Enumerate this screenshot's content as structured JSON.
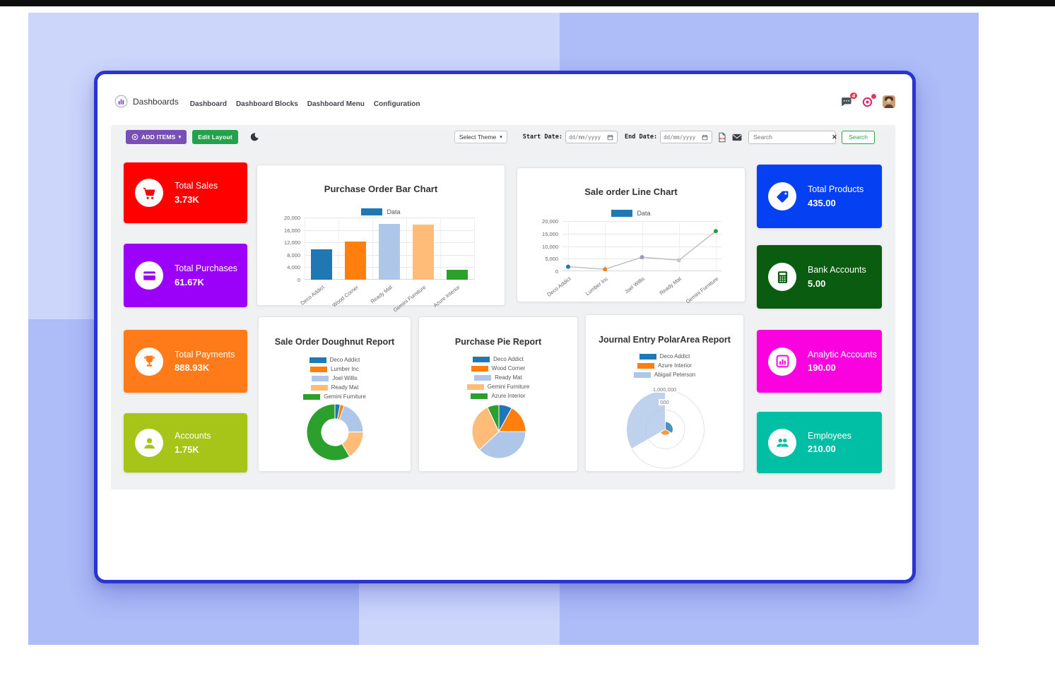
{
  "header": {
    "brand": "Dashboards",
    "nav": [
      "Dashboard",
      "Dashboard Blocks",
      "Dashboard Menu",
      "Configuration"
    ],
    "messages_badge": "4"
  },
  "toolbar": {
    "add_items_label": "ADD ITEMS",
    "edit_layout_label": "Edit Layout",
    "theme_select_value": "Select Theme",
    "start_date_label": "Start Date:",
    "end_date_label": "End Date:",
    "date_placeholder": "dd/mm/yyyy",
    "search_placeholder": "Search",
    "search_clear_glyph": "✕",
    "search_button_label": "Search"
  },
  "accents": {
    "add_items_button": "#7a4fb5",
    "edit_layout_button": "#23a24d",
    "search_button_border": "#28a745",
    "window_border": "#2a35d0",
    "badge": "#e23a53"
  },
  "kpis_left": [
    {
      "label": "Total Sales",
      "value": "3.73K",
      "color": "#fe0000",
      "icon": "cart-icon"
    },
    {
      "label": "Total Purchases",
      "value": "61.67K",
      "color": "#9b00f9",
      "icon": "credit-card-icon"
    },
    {
      "label": "Total Payments",
      "value": "888.93K",
      "color": "#ff7a18",
      "icon": "trophy-icon"
    },
    {
      "label": "Accounts",
      "value": "1.75K",
      "color": "#a6c518",
      "icon": "user-icon"
    }
  ],
  "kpis_right": [
    {
      "label": "Total Products",
      "value": "435.00",
      "color": "#0540f2",
      "icon": "tag-icon"
    },
    {
      "label": "Bank Accounts",
      "value": "5.00",
      "color": "#0a5c10",
      "icon": "calculator-icon"
    },
    {
      "label": "Analytic Accounts",
      "value": "190.00",
      "color": "#f902df",
      "icon": "bar-chart-icon"
    },
    {
      "label": "Employees",
      "value": "210.00",
      "color": "#00bfa5",
      "icon": "users-icon"
    }
  ],
  "chart_data": [
    {
      "type": "bar",
      "title": "Purchase Order Bar Chart",
      "legend": [
        "Data"
      ],
      "legend_color": "#1f77b4",
      "categories": [
        "Deco Addict",
        "Wood Corner",
        "Ready Mat",
        "Gemini Furniture",
        "Azure Interior"
      ],
      "values": [
        9800,
        12300,
        18000,
        17800,
        3200
      ],
      "colors": [
        "#1f77b4",
        "#ff7f0e",
        "#aec7e8",
        "#ffbb78",
        "#2ca02c"
      ],
      "ylim": [
        0,
        20000
      ],
      "yticks": [
        "0",
        "4,000",
        "8,000",
        "12,000",
        "16,000",
        "20,000"
      ],
      "grid": true,
      "legend_position": "top"
    },
    {
      "type": "line",
      "title": "Sale order Line Chart",
      "legend": [
        "Data"
      ],
      "legend_color": "#1f77b4",
      "categories": [
        "Deco Addict",
        "Lumber Inc",
        "Joel Willis",
        "Ready Mat",
        "Gemini Furniture"
      ],
      "values": [
        1800,
        800,
        5600,
        4400,
        16000
      ],
      "point_colors": [
        "#1f77b4",
        "#ff7f0e",
        "#9e9ac8",
        "#c7c7c7",
        "#2ca02c"
      ],
      "line_color": "#bdbdbd",
      "ylim": [
        0,
        20000
      ],
      "yticks": [
        "0",
        "5,000",
        "10,000",
        "15,000",
        "20,000"
      ],
      "grid": true,
      "legend_position": "top"
    },
    {
      "type": "doughnut",
      "title": "Sale Order Doughnut Report",
      "labels": [
        "Deco Addict",
        "Lumber Inc",
        "Joel Willis",
        "Ready Mat",
        "Gemini Furniture"
      ],
      "values": [
        400,
        300,
        2600,
        2200,
        7800
      ],
      "colors": [
        "#1f77b4",
        "#ff7f0e",
        "#aec7e8",
        "#ffbb78",
        "#2ca02c"
      ],
      "legend_position": "top"
    },
    {
      "type": "pie",
      "title": "Purchase Pie Report",
      "labels": [
        "Deco Addict",
        "Wood Corner",
        "Ready Mat",
        "Gemini Furniture",
        "Azure Interior"
      ],
      "values": [
        4000,
        8500,
        19000,
        15000,
        3500
      ],
      "colors": [
        "#1f77b4",
        "#ff7f0e",
        "#aec7e8",
        "#ffbb78",
        "#2ca02c"
      ],
      "legend_position": "top"
    },
    {
      "type": "polarArea",
      "title": "Journal Entry PolarArea Report",
      "labels": [
        "Deco Addict",
        "Azure Interior",
        "Abigail Peterson"
      ],
      "values": [
        200000,
        150000,
        1000000
      ],
      "colors": [
        "#1f77b4",
        "#ff7f0e",
        "#aec7e8"
      ],
      "rmax": 1000000,
      "rticks_visible": [
        "1,000,000",
        "000"
      ],
      "legend_position": "top"
    }
  ]
}
